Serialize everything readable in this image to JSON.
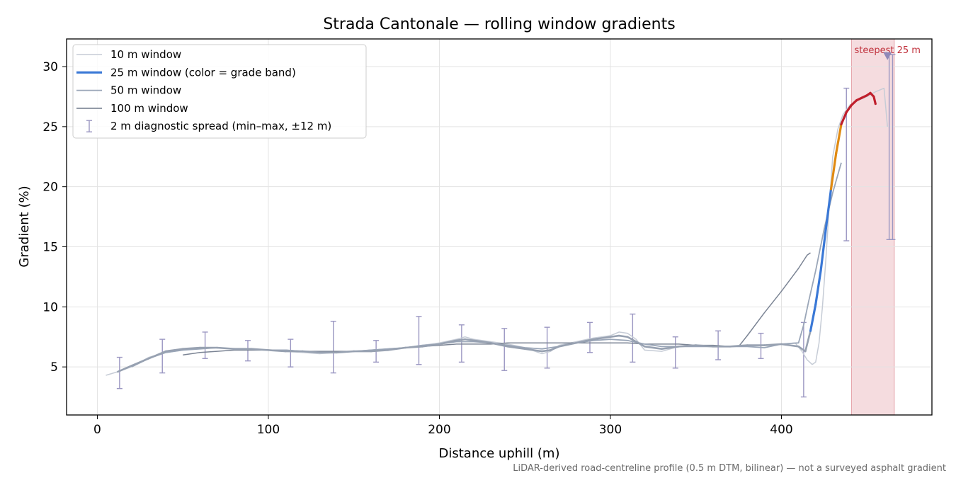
{
  "chart_data": {
    "type": "line",
    "title": "Strada Cantonale — rolling window gradients",
    "xlabel": "Distance uphill (m)",
    "ylabel": "Gradient (%)",
    "xlim": [
      -18,
      488
    ],
    "ylim": [
      1,
      32.3
    ],
    "x_ticks": [
      0,
      100,
      200,
      300,
      400
    ],
    "y_ticks": [
      5,
      10,
      15,
      20,
      25,
      30
    ],
    "grid": true,
    "legend_position": "top-left",
    "footnote": "LiDAR-derived road-centreline profile (0.5 m DTM, bilinear) — not a surveyed asphalt gradient",
    "highlight": {
      "label": "steepest 25 m",
      "x_range": [
        441,
        466
      ],
      "marker": [
        462,
        30.9
      ],
      "color": "#d9747e"
    },
    "legend": [
      {
        "label": "10 m window",
        "color": "#c6ccd6",
        "style": "thin"
      },
      {
        "label": "25 m window (color = grade band)",
        "color": "#3a78d6",
        "style": "thick"
      },
      {
        "label": "50 m window",
        "color": "#9aa6b8",
        "style": "medium"
      },
      {
        "label": "100 m window",
        "color": "#7b8494",
        "style": "medium"
      },
      {
        "label": "2 m diagnostic spread (min–max, ±12 m)",
        "color": "#9b97c2",
        "style": "errorbar"
      }
    ],
    "series": [
      {
        "name": "10 m window",
        "color": "#c6ccd6",
        "x": [
          5,
          12,
          20,
          30,
          40,
          50,
          60,
          70,
          80,
          90,
          100,
          110,
          120,
          130,
          140,
          150,
          160,
          170,
          180,
          190,
          200,
          210,
          215,
          220,
          230,
          240,
          250,
          260,
          265,
          270,
          280,
          290,
          300,
          305,
          310,
          315,
          320,
          330,
          340,
          350,
          360,
          370,
          380,
          390,
          400,
          408,
          412,
          415,
          418,
          420,
          422,
          424,
          426,
          428,
          430,
          433,
          436,
          440,
          445,
          450,
          455,
          460,
          462
        ],
        "y": [
          4.3,
          4.6,
          5.0,
          5.8,
          6.2,
          6.4,
          6.6,
          6.6,
          6.5,
          6.5,
          6.4,
          6.3,
          6.2,
          6.1,
          6.2,
          6.3,
          6.3,
          6.5,
          6.6,
          6.8,
          7.0,
          7.3,
          7.5,
          7.3,
          7.1,
          6.9,
          6.6,
          6.1,
          6.3,
          6.8,
          7.1,
          7.4,
          7.6,
          7.9,
          7.8,
          7.3,
          6.4,
          6.3,
          6.7,
          6.8,
          6.7,
          6.7,
          6.8,
          6.8,
          6.9,
          7.0,
          6.3,
          5.6,
          5.2,
          5.4,
          7.0,
          10.0,
          14.0,
          18.5,
          22.5,
          24.8,
          26.0,
          26.8,
          27.2,
          27.5,
          27.9,
          28.2,
          25.0
        ]
      },
      {
        "name": "25 m window",
        "color": "#3a78d6",
        "x": [
          12,
          20,
          30,
          40,
          50,
          60,
          70,
          80,
          90,
          100,
          110,
          120,
          130,
          140,
          150,
          160,
          170,
          180,
          190,
          200,
          210,
          215,
          220,
          230,
          240,
          250,
          260,
          265,
          270,
          280,
          290,
          300,
          305,
          310,
          315,
          320,
          330,
          340,
          350,
          360,
          370,
          380,
          390,
          400,
          405,
          410,
          414,
          417,
          420,
          423,
          426,
          429,
          432,
          435,
          438,
          441,
          444,
          447,
          450,
          452,
          454,
          455
        ],
        "y": [
          4.6,
          5.1,
          5.7,
          6.3,
          6.5,
          6.6,
          6.6,
          6.5,
          6.5,
          6.4,
          6.3,
          6.3,
          6.2,
          6.2,
          6.3,
          6.3,
          6.4,
          6.6,
          6.7,
          6.9,
          7.2,
          7.3,
          7.2,
          7.0,
          6.7,
          6.5,
          6.3,
          6.4,
          6.7,
          7.0,
          7.3,
          7.5,
          7.6,
          7.5,
          7.1,
          6.7,
          6.5,
          6.7,
          6.8,
          6.7,
          6.7,
          6.8,
          6.8,
          6.9,
          6.8,
          6.7,
          6.3,
          8.0,
          10.2,
          13.0,
          16.5,
          19.8,
          22.8,
          25.2,
          26.2,
          26.8,
          27.2,
          27.4,
          27.6,
          27.8,
          27.5,
          26.9
        ],
        "grade_bands": [
          {
            "from": 0,
            "to": 15,
            "color": "#3a78d6"
          },
          {
            "from": 15,
            "to": 20,
            "color": "#3a78d6"
          },
          {
            "from": 20,
            "to": 25,
            "color": "#e08a12"
          },
          {
            "from": 25,
            "to": 100,
            "color": "#c01f2c"
          }
        ]
      },
      {
        "name": "50 m window",
        "color": "#9aa6b8",
        "x": [
          20,
          30,
          40,
          50,
          60,
          70,
          80,
          90,
          100,
          110,
          120,
          130,
          140,
          150,
          160,
          170,
          180,
          190,
          200,
          210,
          220,
          230,
          240,
          250,
          260,
          270,
          280,
          290,
          300,
          310,
          320,
          330,
          340,
          350,
          360,
          370,
          380,
          390,
          400,
          410,
          413,
          416,
          420,
          425,
          430,
          435
        ],
        "y": [
          5.0,
          5.7,
          6.2,
          6.4,
          6.5,
          6.6,
          6.5,
          6.5,
          6.4,
          6.4,
          6.3,
          6.2,
          6.2,
          6.3,
          6.4,
          6.5,
          6.6,
          6.8,
          6.9,
          7.1,
          7.1,
          7.0,
          6.8,
          6.6,
          6.5,
          6.7,
          7.0,
          7.2,
          7.3,
          7.2,
          6.9,
          6.7,
          6.7,
          6.7,
          6.7,
          6.7,
          6.7,
          6.6,
          6.9,
          7.0,
          8.5,
          10.5,
          13.0,
          16.5,
          19.5,
          22.0
        ]
      },
      {
        "name": "100 m window",
        "color": "#7b8494",
        "x": [
          50,
          60,
          70,
          80,
          90,
          100,
          110,
          120,
          130,
          140,
          150,
          160,
          170,
          180,
          190,
          200,
          210,
          220,
          230,
          240,
          250,
          260,
          270,
          280,
          290,
          300,
          310,
          320,
          330,
          340,
          350,
          360,
          370,
          375,
          380,
          390,
          400,
          410,
          415,
          417
        ],
        "y": [
          6.0,
          6.2,
          6.3,
          6.4,
          6.4,
          6.4,
          6.4,
          6.3,
          6.3,
          6.3,
          6.3,
          6.4,
          6.5,
          6.6,
          6.7,
          6.8,
          6.9,
          6.9,
          6.9,
          7.0,
          7.0,
          7.0,
          7.0,
          7.0,
          7.0,
          7.0,
          7.0,
          6.9,
          6.9,
          6.9,
          6.8,
          6.8,
          6.7,
          6.7,
          7.6,
          9.5,
          11.3,
          13.2,
          14.3,
          14.5
        ]
      }
    ],
    "errorbars": {
      "name": "2 m diagnostic spread (min–max, ±12 m)",
      "color": "#9b97c2",
      "x": [
        13,
        38,
        63,
        88,
        113,
        138,
        163,
        188,
        213,
        238,
        263,
        288,
        313,
        338,
        363,
        388,
        413,
        438,
        463,
        465
      ],
      "ymin": [
        3.2,
        4.5,
        5.7,
        5.5,
        5.0,
        4.5,
        5.4,
        5.2,
        5.4,
        4.7,
        4.9,
        6.2,
        5.4,
        4.9,
        5.6,
        5.7,
        2.5,
        15.5,
        15.6,
        15.6
      ],
      "ymax": [
        5.8,
        7.3,
        7.9,
        7.2,
        7.3,
        8.8,
        7.2,
        9.2,
        8.5,
        8.2,
        8.3,
        8.7,
        9.4,
        7.5,
        8.0,
        7.8,
        8.7,
        28.2,
        31.0,
        31.0
      ]
    }
  }
}
